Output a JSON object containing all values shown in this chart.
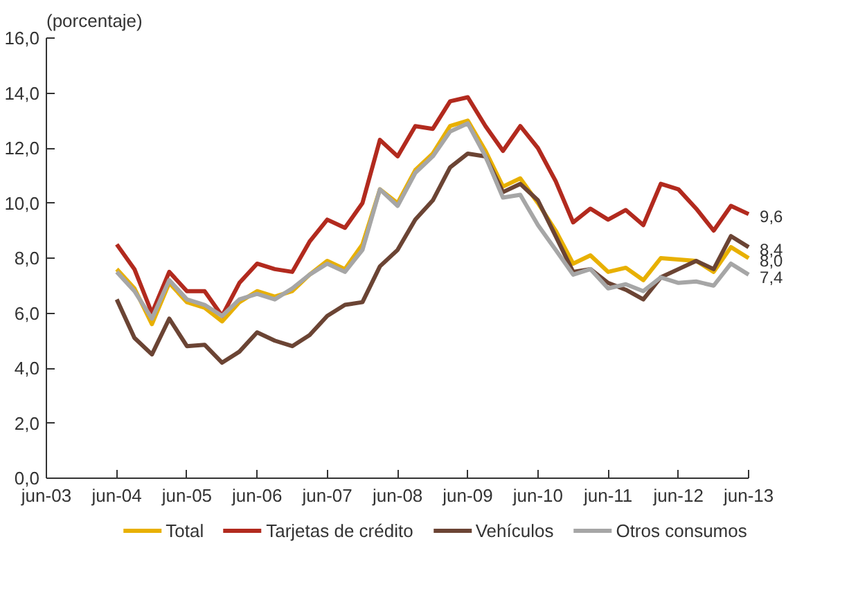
{
  "chart_data": {
    "type": "line",
    "ylabel": "(porcentaje)",
    "x": [
      "2004-06",
      "2004-09",
      "2004-12",
      "2005-03",
      "2005-06",
      "2005-09",
      "2005-12",
      "2006-03",
      "2006-06",
      "2006-09",
      "2006-12",
      "2007-03",
      "2007-06",
      "2007-09",
      "2007-12",
      "2008-03",
      "2008-06",
      "2008-09",
      "2008-12",
      "2009-03",
      "2009-06",
      "2009-09",
      "2009-12",
      "2010-03",
      "2010-06",
      "2010-09",
      "2010-12",
      "2011-03",
      "2011-06",
      "2011-09",
      "2011-12",
      "2012-03",
      "2012-06",
      "2012-09",
      "2012-12",
      "2013-03",
      "2013-06"
    ],
    "series": [
      {
        "name": "Total",
        "color": "#e8b000",
        "values": [
          7.6,
          6.9,
          5.6,
          7.1,
          6.4,
          6.2,
          5.7,
          6.4,
          6.8,
          6.6,
          6.8,
          7.4,
          7.9,
          7.6,
          8.5,
          10.5,
          10.0,
          11.2,
          11.8,
          12.8,
          13.0,
          11.9,
          10.6,
          10.9,
          10.0,
          9.0,
          7.8,
          8.1,
          7.5,
          7.65,
          7.2,
          8.0,
          7.95,
          7.9,
          7.5,
          8.4,
          8.0
        ]
      },
      {
        "name": "Tarjetas de crédito",
        "color": "#b22a1e",
        "values": [
          8.5,
          7.6,
          6.0,
          7.5,
          6.8,
          6.8,
          5.9,
          7.1,
          7.8,
          7.6,
          7.5,
          8.6,
          9.4,
          9.1,
          10.0,
          12.3,
          11.7,
          12.8,
          12.7,
          13.7,
          13.85,
          12.8,
          11.9,
          12.8,
          12.0,
          10.8,
          9.3,
          9.8,
          9.4,
          9.75,
          9.2,
          10.7,
          10.5,
          9.8,
          9.0,
          9.9,
          9.6
        ]
      },
      {
        "name": "Vehículos",
        "color": "#6b4434",
        "values": [
          6.5,
          5.1,
          4.5,
          5.8,
          4.8,
          4.85,
          4.2,
          4.6,
          5.3,
          5.0,
          4.8,
          5.2,
          5.9,
          6.3,
          6.4,
          7.7,
          8.3,
          9.4,
          10.1,
          11.3,
          11.8,
          11.7,
          10.4,
          10.7,
          10.1,
          8.8,
          7.5,
          7.6,
          7.1,
          6.85,
          6.5,
          7.3,
          7.6,
          7.9,
          7.6,
          8.8,
          8.4
        ]
      },
      {
        "name": "Otros consumos",
        "color": "#a6a6a6",
        "values": [
          7.5,
          6.8,
          5.8,
          7.2,
          6.5,
          6.3,
          5.9,
          6.5,
          6.7,
          6.5,
          6.9,
          7.4,
          7.8,
          7.5,
          8.3,
          10.5,
          9.9,
          11.1,
          11.7,
          12.6,
          12.9,
          11.7,
          10.2,
          10.3,
          9.2,
          8.3,
          7.4,
          7.6,
          6.9,
          7.05,
          6.8,
          7.3,
          7.1,
          7.15,
          7.0,
          7.8,
          7.4
        ]
      }
    ],
    "xlim": [
      "2003-06",
      "2013-06"
    ],
    "xticks": [
      {
        "value": "2003-06",
        "label": "jun-03"
      },
      {
        "value": "2004-06",
        "label": "jun-04"
      },
      {
        "value": "2005-06",
        "label": "jun-05"
      },
      {
        "value": "2006-06",
        "label": "jun-06"
      },
      {
        "value": "2007-06",
        "label": "jun-07"
      },
      {
        "value": "2008-06",
        "label": "jun-08"
      },
      {
        "value": "2009-06",
        "label": "jun-09"
      },
      {
        "value": "2010-06",
        "label": "jun-10"
      },
      {
        "value": "2011-06",
        "label": "jun-11"
      },
      {
        "value": "2012-06",
        "label": "jun-12"
      },
      {
        "value": "2013-06",
        "label": "jun-13"
      }
    ],
    "ylim": [
      0,
      16
    ],
    "yticks": [
      {
        "value": 0,
        "label": "0,0"
      },
      {
        "value": 2,
        "label": "2,0"
      },
      {
        "value": 4,
        "label": "4,0"
      },
      {
        "value": 6,
        "label": "6,0"
      },
      {
        "value": 8,
        "label": "8,0"
      },
      {
        "value": 10,
        "label": "10,0"
      },
      {
        "value": 12,
        "label": "12,0"
      },
      {
        "value": 14,
        "label": "14,0"
      },
      {
        "value": 16,
        "label": "16,0"
      }
    ],
    "annotations": [
      {
        "text": "9,6",
        "x": "2013-06",
        "y": 9.6
      },
      {
        "text": "8,4",
        "x": "2013-06",
        "y": 8.4
      },
      {
        "text": "8,0",
        "x": "2013-06",
        "y": 8.0
      },
      {
        "text": "7,4",
        "x": "2013-06",
        "y": 7.4
      }
    ],
    "grid": false,
    "legend": "bottom",
    "marker": "none",
    "line_style": "solid"
  }
}
